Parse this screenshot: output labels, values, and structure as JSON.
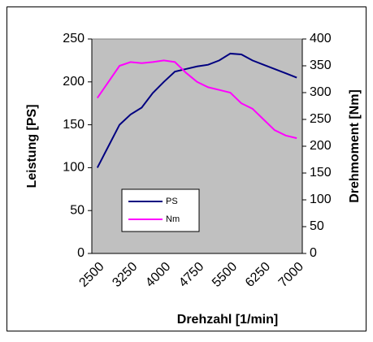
{
  "chart_data": {
    "type": "line",
    "xlabel": "Drehzahl [1/min]",
    "ylabel": "Leistung [PS]",
    "y2label": "Drehmoment [Nm]",
    "categories": [
      "2500",
      null,
      null,
      "3250",
      null,
      null,
      "4000",
      null,
      null,
      "4750",
      null,
      null,
      "5500",
      null,
      null,
      "6250",
      null,
      null,
      "7000"
    ],
    "series": [
      {
        "name": "PS",
        "color": "#000080",
        "values": [
          100,
          125,
          150,
          162,
          170,
          187,
          200,
          212,
          215,
          218,
          220,
          225,
          233,
          232,
          225,
          220,
          215,
          210,
          205
        ]
      },
      {
        "name": "Nm",
        "color": "#ff00ff",
        "axis": "y2",
        "values": [
          290,
          320,
          350,
          357,
          355,
          357,
          360,
          357,
          337,
          320,
          310,
          305,
          300,
          280,
          270,
          250,
          230,
          220,
          215
        ]
      }
    ],
    "ylim": [
      0,
      250
    ],
    "yticks": [
      0,
      50,
      100,
      150,
      200,
      250
    ],
    "y2lim": [
      0,
      400
    ],
    "y2ticks": [
      0,
      50,
      100,
      150,
      200,
      250,
      300,
      350,
      400
    ],
    "grid": false,
    "plot_background": "#c0c0c0"
  }
}
